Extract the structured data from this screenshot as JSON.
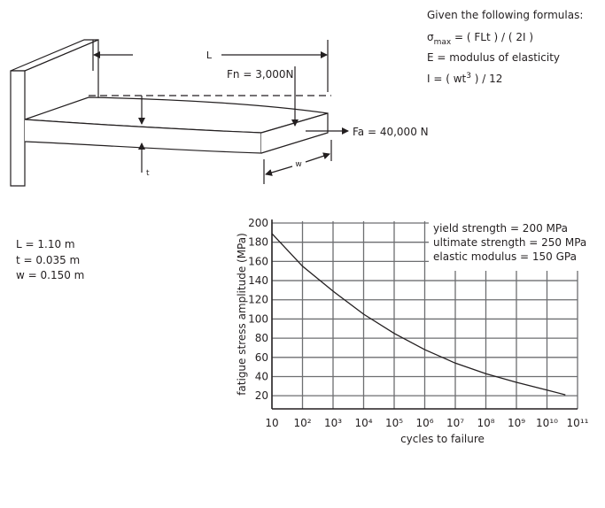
{
  "formulas": {
    "heading": "Given the following formulas:",
    "sigma": {
      "symbol": "σ",
      "subscript": "max",
      "expression": " = ( FLt ) / ( 2I )"
    },
    "modulus": "E = modulus of elasticity",
    "inertia": {
      "start": "I = ( wt",
      "superscript": "3",
      "end": " ) / 12"
    }
  },
  "beam": {
    "length_label": "L",
    "normal_force": "Fn = 3,000N",
    "axial_force": "Fa = 40,000 N",
    "width_label": "w",
    "thickness_label": "t"
  },
  "parameters": [
    "L = 1.10 m",
    "t = 0.035 m",
    "w = 0.150 m"
  ],
  "chart_data": {
    "type": "line",
    "xlabel": "cycles to failure",
    "ylabel": "fatigue stress amplitude (MPa)",
    "x_log": true,
    "grid": true,
    "xlim": [
      10,
      100000000000
    ],
    "ylim": [
      10,
      200
    ],
    "xticks": [
      10,
      {
        "value": 100,
        "label": "10²"
      },
      {
        "value": 1000,
        "label": "10³"
      },
      {
        "value": 10000,
        "label": "10⁴"
      },
      {
        "value": 100000,
        "label": "10⁵"
      },
      {
        "value": 1000000,
        "label": "10⁶"
      },
      {
        "value": 10000000,
        "label": "10⁷"
      },
      {
        "value": 100000000,
        "label": "10⁸"
      },
      {
        "value": 1000000000,
        "label": "10⁹"
      },
      {
        "value": 10000000000,
        "label": "10¹⁰"
      },
      {
        "value": 100000000000,
        "label": "10¹¹"
      }
    ],
    "yticks": [
      20,
      40,
      60,
      80,
      100,
      120,
      140,
      160,
      180,
      200
    ],
    "x": [
      10,
      100,
      1000,
      10000,
      100000,
      1000000,
      10000000,
      100000000,
      1000000000,
      10000000000,
      40000000000
    ],
    "series": [
      {
        "color": "#231f20",
        "values": [
          189,
          155,
          129,
          105,
          85,
          68,
          54,
          43,
          34,
          26,
          21
        ]
      }
    ],
    "annotations": [
      "yield strength = 200 MPa",
      "ultimate strength = 250 MPa",
      "elastic modulus = 150 GPa"
    ]
  }
}
